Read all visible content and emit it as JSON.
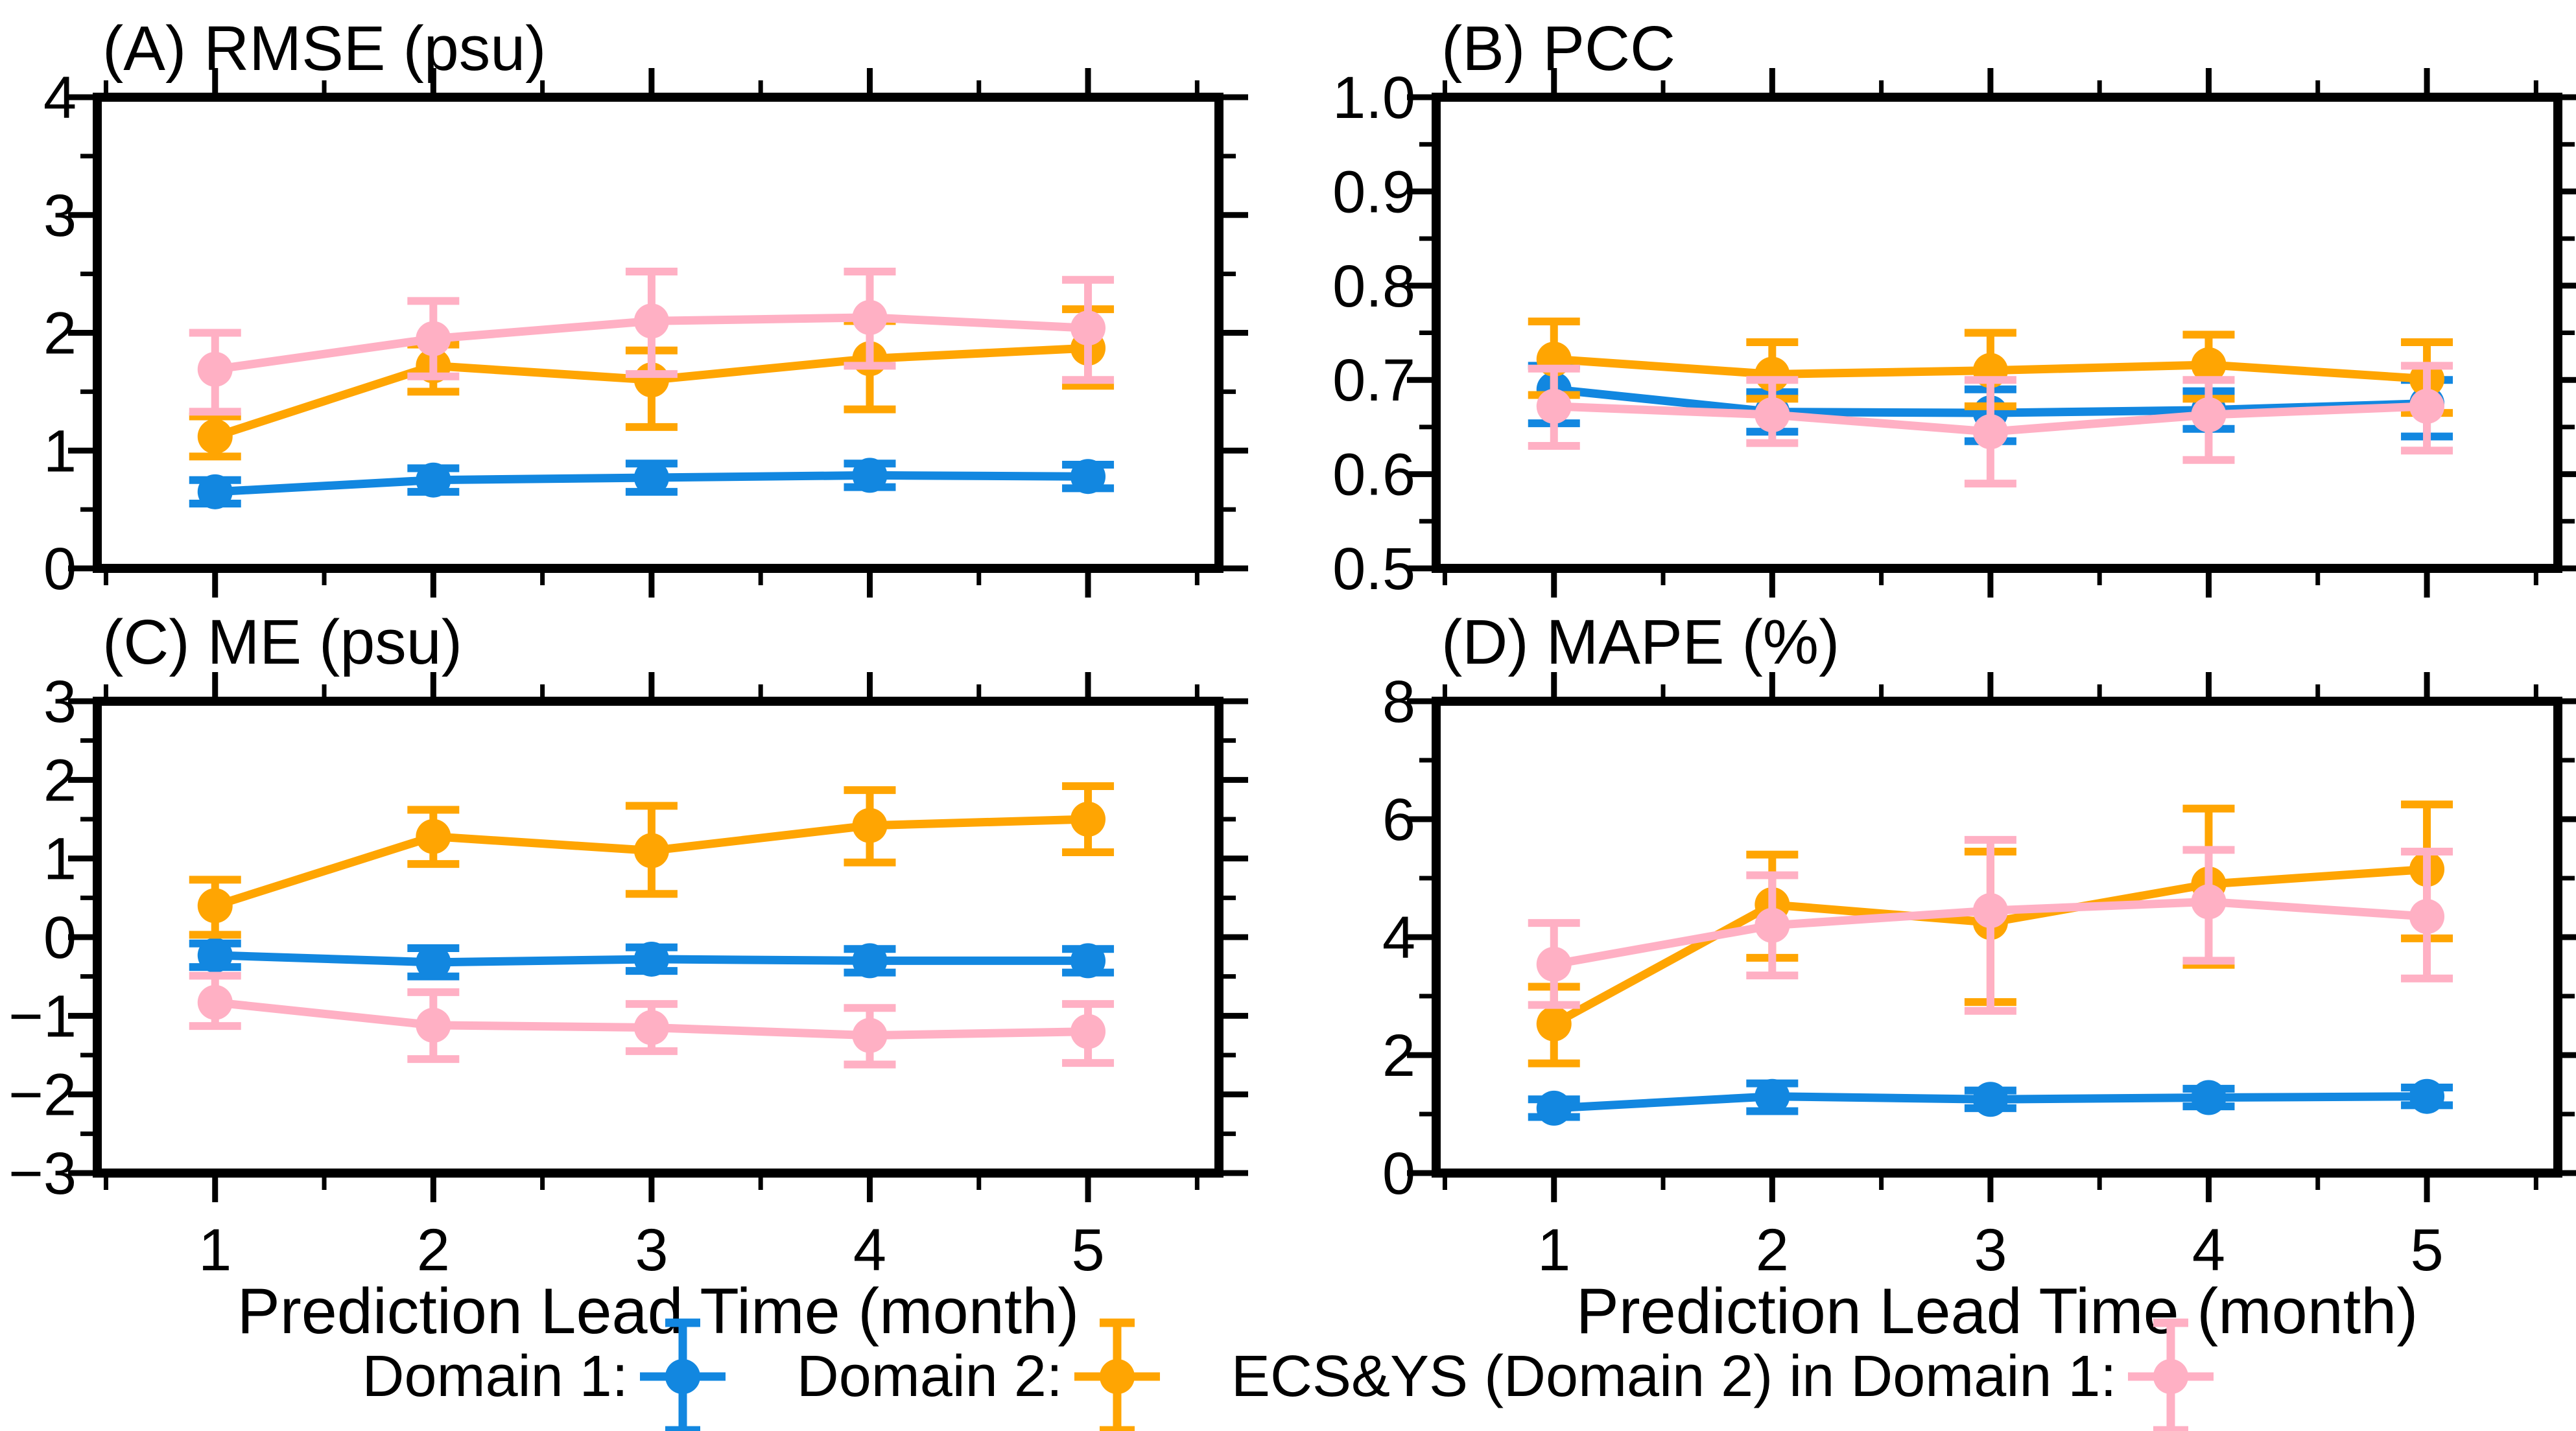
{
  "page": {
    "background": "#FFFFFF"
  },
  "colors": {
    "domain1": "#1287E0",
    "domain2": "#FFA502",
    "ecsys_pink": "#FFB0C4",
    "axis": "#000000"
  },
  "x_axis": {
    "title": "Prediction Lead Time (month)",
    "tick_values": [
      1,
      2,
      3,
      4,
      5
    ],
    "tick_labels": [
      "1",
      "2",
      "3",
      "4",
      "5"
    ],
    "minor_step": 0.5,
    "range": [
      0.46,
      5.6
    ]
  },
  "legend": {
    "items": [
      {
        "label": "Domain 1:",
        "color_key": "domain1"
      },
      {
        "label": "Domain 2:",
        "color_key": "domain2"
      },
      {
        "label": "ECS&YS (Domain 2) in Domain 1:",
        "color_key": "ecsys_pink"
      }
    ]
  },
  "chart_data": [
    {
      "id": "A",
      "title": "(A) RMSE (psu)",
      "type": "line",
      "ylim": [
        0,
        4
      ],
      "ytick_values": [
        0,
        1,
        2,
        3,
        4
      ],
      "ytick_labels": [
        "0",
        "1",
        "2",
        "3",
        "4"
      ],
      "y_minor_step": 0.5,
      "x": [
        1,
        2,
        3,
        4,
        5
      ],
      "show_x_labels": false,
      "series": [
        {
          "name": "Domain 1",
          "color_key": "domain1",
          "values": [
            0.65,
            0.75,
            0.77,
            0.79,
            0.78
          ],
          "err_lo": [
            0.1,
            0.1,
            0.12,
            0.1,
            0.1
          ],
          "err_hi": [
            0.1,
            0.1,
            0.12,
            0.1,
            0.1
          ]
        },
        {
          "name": "Domain 2",
          "color_key": "domain2",
          "values": [
            1.12,
            1.72,
            1.6,
            1.78,
            1.87
          ],
          "err_lo": [
            0.17,
            0.22,
            0.4,
            0.43,
            0.32
          ],
          "err_hi": [
            0.17,
            0.18,
            0.25,
            0.32,
            0.33
          ]
        },
        {
          "name": "ECS&YS (Domain 2) in Domain 1",
          "color_key": "ecsys_pink",
          "values": [
            1.69,
            1.95,
            2.1,
            2.13,
            2.04
          ],
          "err_lo": [
            0.36,
            0.32,
            0.45,
            0.41,
            0.44
          ],
          "err_hi": [
            0.31,
            0.32,
            0.42,
            0.39,
            0.41
          ]
        }
      ]
    },
    {
      "id": "B",
      "title": "(B) PCC",
      "type": "line",
      "ylim": [
        0.5,
        1.0
      ],
      "ytick_values": [
        0.5,
        0.6,
        0.7,
        0.8,
        0.9,
        1.0
      ],
      "ytick_labels": [
        "0.5",
        "0.6",
        "0.7",
        "0.8",
        "0.9",
        "1.0"
      ],
      "y_minor_step": 0.05,
      "x": [
        1,
        2,
        3,
        4,
        5
      ],
      "show_x_labels": false,
      "series": [
        {
          "name": "Domain 1",
          "color_key": "domain1",
          "values": [
            0.69,
            0.666,
            0.665,
            0.668,
            0.675
          ],
          "err_lo": [
            0.036,
            0.021,
            0.03,
            0.02,
            0.035
          ],
          "err_hi": [
            0.025,
            0.021,
            0.025,
            0.02,
            0.025
          ]
        },
        {
          "name": "Domain 2",
          "color_key": "domain2",
          "values": [
            0.722,
            0.706,
            0.71,
            0.716,
            0.701
          ],
          "err_lo": [
            0.038,
            0.026,
            0.038,
            0.036,
            0.036
          ],
          "err_hi": [
            0.04,
            0.034,
            0.04,
            0.032,
            0.039
          ]
        },
        {
          "name": "ECS&YS (Domain 2) in Domain 1",
          "color_key": "ecsys_pink",
          "values": [
            0.672,
            0.663,
            0.645,
            0.663,
            0.672
          ],
          "err_lo": [
            0.042,
            0.03,
            0.055,
            0.048,
            0.047
          ],
          "err_hi": [
            0.04,
            0.037,
            0.055,
            0.037,
            0.043
          ]
        }
      ]
    },
    {
      "id": "C",
      "title": "(C) ME (psu)",
      "type": "line",
      "ylim": [
        -3,
        3
      ],
      "ytick_values": [
        -3,
        -2,
        -1,
        0,
        1,
        2,
        3
      ],
      "ytick_labels": [
        "−3",
        "−2",
        "−1",
        "0",
        "1",
        "2",
        "3"
      ],
      "y_minor_step": 0.5,
      "x": [
        1,
        2,
        3,
        4,
        5
      ],
      "show_x_labels": true,
      "series": [
        {
          "name": "Domain 1",
          "color_key": "domain1",
          "values": [
            -0.23,
            -0.32,
            -0.28,
            -0.3,
            -0.3
          ],
          "err_lo": [
            0.15,
            0.18,
            0.15,
            0.15,
            0.15
          ],
          "err_hi": [
            0.15,
            0.18,
            0.15,
            0.15,
            0.15
          ]
        },
        {
          "name": "Domain 2",
          "color_key": "domain2",
          "values": [
            0.4,
            1.28,
            1.1,
            1.42,
            1.5
          ],
          "err_lo": [
            0.37,
            0.35,
            0.55,
            0.47,
            0.42
          ],
          "err_hi": [
            0.33,
            0.34,
            0.57,
            0.45,
            0.42
          ]
        },
        {
          "name": "ECS&YS (Domain 2) in Domain 1",
          "color_key": "ecsys_pink",
          "values": [
            -0.83,
            -1.12,
            -1.15,
            -1.25,
            -1.2
          ],
          "err_lo": [
            0.3,
            0.43,
            0.3,
            0.37,
            0.4
          ],
          "err_hi": [
            0.34,
            0.42,
            0.3,
            0.35,
            0.35
          ]
        }
      ]
    },
    {
      "id": "D",
      "title": "(D) MAPE (%)",
      "type": "line",
      "ylim": [
        0,
        8
      ],
      "ytick_values": [
        0,
        2,
        4,
        6,
        8
      ],
      "ytick_labels": [
        "0",
        "2",
        "4",
        "6",
        "8"
      ],
      "y_minor_step": 1,
      "x": [
        1,
        2,
        3,
        4,
        5
      ],
      "show_x_labels": true,
      "series": [
        {
          "name": "Domain 1",
          "color_key": "domain1",
          "values": [
            1.1,
            1.3,
            1.25,
            1.28,
            1.3
          ],
          "err_lo": [
            0.15,
            0.25,
            0.15,
            0.15,
            0.15
          ],
          "err_hi": [
            0.15,
            0.22,
            0.15,
            0.15,
            0.15
          ]
        },
        {
          "name": "Domain 2",
          "color_key": "domain2",
          "values": [
            2.53,
            4.55,
            4.25,
            4.9,
            5.15
          ],
          "err_lo": [
            0.67,
            0.9,
            1.35,
            1.37,
            1.17
          ],
          "err_hi": [
            0.63,
            0.85,
            1.2,
            1.28,
            1.1
          ]
        },
        {
          "name": "ECS&YS (Domain 2) in Domain 1",
          "color_key": "ecsys_pink",
          "values": [
            3.54,
            4.2,
            4.45,
            4.6,
            4.35
          ],
          "err_lo": [
            0.69,
            0.85,
            1.7,
            1.0,
            1.05
          ],
          "err_hi": [
            0.7,
            0.85,
            1.2,
            0.88,
            1.1
          ]
        }
      ]
    }
  ]
}
